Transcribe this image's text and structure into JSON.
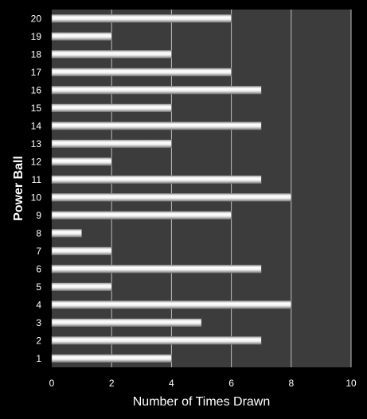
{
  "chart_data": {
    "type": "bar",
    "orientation": "horizontal",
    "xlabel": "Number of Times Drawn",
    "ylabel": "Power Ball",
    "xlim": [
      0,
      10
    ],
    "x_ticks": [
      0,
      2,
      4,
      6,
      8,
      10
    ],
    "grid": true,
    "categories": [
      "1",
      "2",
      "3",
      "4",
      "5",
      "6",
      "7",
      "8",
      "9",
      "10",
      "11",
      "12",
      "13",
      "14",
      "15",
      "16",
      "17",
      "18",
      "19",
      "20"
    ],
    "values": [
      4,
      7,
      5,
      8,
      2,
      7,
      2,
      1,
      6,
      8,
      7,
      2,
      4,
      7,
      4,
      7,
      6,
      4,
      2,
      6
    ],
    "colors": {
      "background": "#000000",
      "plot_area": "#3c3c3c",
      "gridline": "#bdbdbd",
      "bar_light": "#ffffff",
      "bar_dark": "#8a8a8a"
    }
  }
}
